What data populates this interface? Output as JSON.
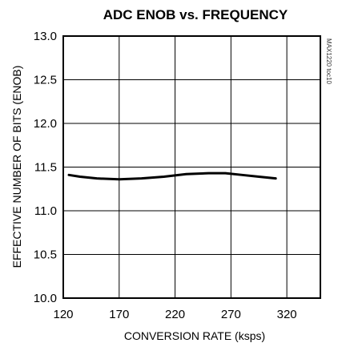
{
  "chart_data": {
    "type": "line",
    "title": "ADC ENOB vs. FREQUENCY",
    "xlabel": "CONVERSION RATE (ksps)",
    "ylabel": "EFFECTIVE NUMBER OF BITS (ENOB)",
    "xlim": [
      120,
      350
    ],
    "ylim": [
      10.0,
      13.0
    ],
    "xticks": [
      120,
      170,
      220,
      270,
      320
    ],
    "yticks": [
      10.0,
      10.5,
      11.0,
      11.5,
      12.0,
      12.5,
      13.0
    ],
    "xtick_labels": [
      "120",
      "170",
      "220",
      "270",
      "320"
    ],
    "ytick_labels": [
      "10.0",
      "10.5",
      "11.0",
      "11.5",
      "12.0",
      "12.5",
      "13.0"
    ],
    "grid": true,
    "series": [
      {
        "x": [
          125,
          135,
          150,
          170,
          190,
          210,
          230,
          250,
          265,
          280,
          295,
          310
        ],
        "y": [
          11.41,
          11.39,
          11.37,
          11.36,
          11.37,
          11.39,
          11.42,
          11.43,
          11.43,
          11.41,
          11.39,
          11.37
        ]
      }
    ],
    "figure_code": "MAX1220 toc10"
  }
}
